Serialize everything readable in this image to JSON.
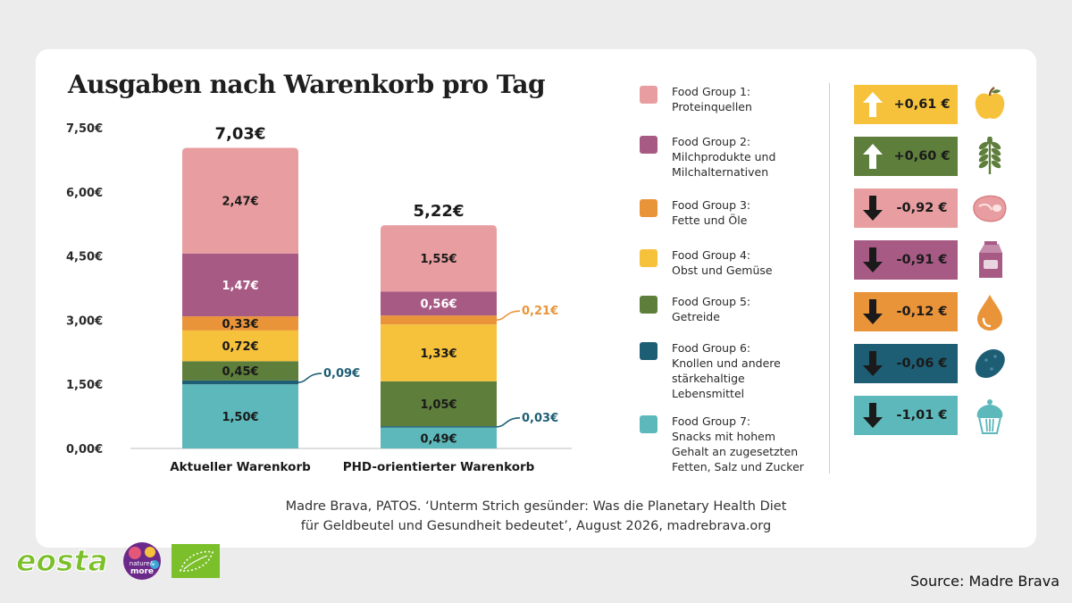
{
  "chart_data": {
    "type": "bar",
    "stacked": true,
    "title": "Ausgaben nach Warenkorb pro Tag",
    "categories": [
      "Aktueller Warenkorb",
      "PHD-orientierter Warenkorb"
    ],
    "totals": [
      7.03,
      5.22
    ],
    "total_labels": [
      "7,03€",
      "5,22€"
    ],
    "ylim": [
      0,
      7.5
    ],
    "yticks": [
      0,
      1.5,
      3,
      4.5,
      6,
      7.5
    ],
    "ytick_labels": [
      "0,00€",
      "1,50€",
      "3,00€",
      "4,50€",
      "6,00€",
      "7,50€"
    ],
    "grid": false,
    "legend_position": "right",
    "series": [
      {
        "name": "Food Group 7: Snacks mit hohem Gehalt an zugesetzten Fetten, Salz und Zucker",
        "color": "#5db8bb",
        "values": [
          1.5,
          0.49
        ],
        "labels": [
          "1,50€",
          "0,49€"
        ]
      },
      {
        "name": "Food Group 6: Knollen und andere stärkehaltige Lebensmittel",
        "color": "#1d5e74",
        "values": [
          0.09,
          0.03
        ],
        "labels": [
          "0,09€",
          "0,03€"
        ]
      },
      {
        "name": "Food Group 5: Getreide",
        "color": "#5e7e3c",
        "values": [
          0.45,
          1.05
        ],
        "labels": [
          "0,45€",
          "1,05€"
        ]
      },
      {
        "name": "Food Group 4: Obst und Gemüse",
        "color": "#f7c23b",
        "values": [
          0.72,
          1.33
        ],
        "labels": [
          "0,72€",
          "1,33€"
        ]
      },
      {
        "name": "Food Group 3: Fette und Öle",
        "color": "#ea943a",
        "values": [
          0.33,
          0.21
        ],
        "labels": [
          "0,33€",
          "0,21€"
        ]
      },
      {
        "name": "Food Group 2: Milchprodukte und Milchalternativen",
        "color": "#a75a84",
        "values": [
          1.47,
          0.56
        ],
        "labels": [
          "1,47€",
          "0,56€"
        ]
      },
      {
        "name": "Food Group 1: Proteinquellen",
        "color": "#e89ea0",
        "values": [
          2.47,
          1.55
        ],
        "labels": [
          "2,47€",
          "1,55€"
        ]
      }
    ],
    "changes": [
      {
        "label": "+0,61 €",
        "direction": "up",
        "color": "#f7c23b",
        "icon": "apple-icon"
      },
      {
        "label": "+0,60 €",
        "direction": "up",
        "color": "#5e7e3c",
        "icon": "wheat-icon"
      },
      {
        "label": "-0,92 €",
        "direction": "down",
        "color": "#e89ea0",
        "icon": "steak-icon"
      },
      {
        "label": "-0,91 €",
        "direction": "down",
        "color": "#a75a84",
        "icon": "milk-carton-icon"
      },
      {
        "label": "-0,12 €",
        "direction": "down",
        "color": "#ea943a",
        "icon": "oil-drop-icon"
      },
      {
        "label": "-0,06 €",
        "direction": "down",
        "color": "#1d5e74",
        "icon": "potato-icon"
      },
      {
        "label": "-1,01 €",
        "direction": "down",
        "color": "#5db8bb",
        "icon": "cupcake-icon"
      }
    ]
  },
  "legend": [
    {
      "lines": [
        "Food Group 1:",
        "Proteinquellen"
      ],
      "color": "#e89ea0"
    },
    {
      "lines": [
        "Food Group 2:",
        "Milchprodukte und",
        "Milchalternativen"
      ],
      "color": "#a75a84"
    },
    {
      "lines": [
        "Food Group 3:",
        "Fette und Öle"
      ],
      "color": "#ea943a"
    },
    {
      "lines": [
        "Food Group 4:",
        "Obst und Gemüse"
      ],
      "color": "#f7c23b"
    },
    {
      "lines": [
        "Food Group 5:",
        "Getreide"
      ],
      "color": "#5e7e3c"
    },
    {
      "lines": [
        "Food Group 6:",
        "Knollen und andere",
        "stärkehaltige",
        "Lebensmittel"
      ],
      "color": "#1d5e74"
    },
    {
      "lines": [
        "Food Group 7:",
        "Snacks mit hohem",
        "Gehalt an zugesetzten",
        "Fetten, Salz und Zucker"
      ],
      "color": "#5db8bb"
    }
  ],
  "source_note": {
    "line1": "Madre Brava, PATOS. ‘Unterm Strich gesünder: Was die Planetary Health Diet",
    "line2": "für Geldbeutel und Gesundheit bedeutet’, August 2026, madrebrava.org"
  },
  "source_credit": "Source: Madre Brava",
  "logos": {
    "eosta": "eosta",
    "nature_and_more": [
      "nature&",
      "more"
    ]
  }
}
